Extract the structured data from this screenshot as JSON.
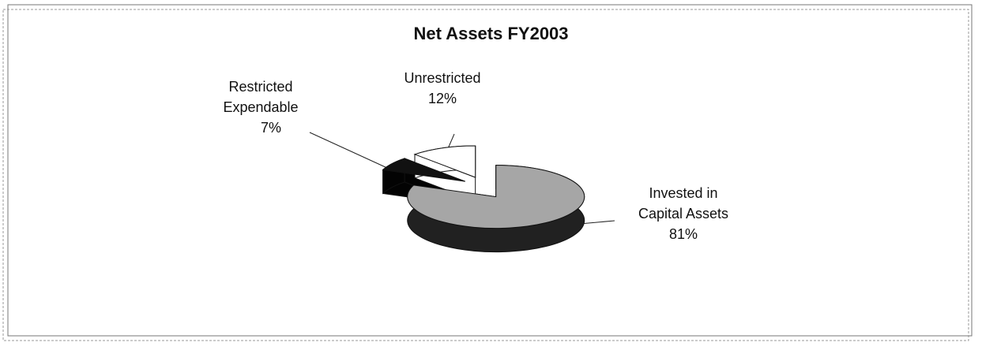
{
  "chart_data": {
    "type": "pie",
    "title": "Net Assets FY2003",
    "categories": [
      "Invested in Capital Assets",
      "Restricted Expendable",
      "Unrestricted"
    ],
    "values": [
      81,
      7,
      12
    ],
    "value_labels": [
      "81%",
      "7%",
      "12%"
    ],
    "colors": [
      "#a6a6a6",
      "#111111",
      "#ffffff"
    ]
  }
}
